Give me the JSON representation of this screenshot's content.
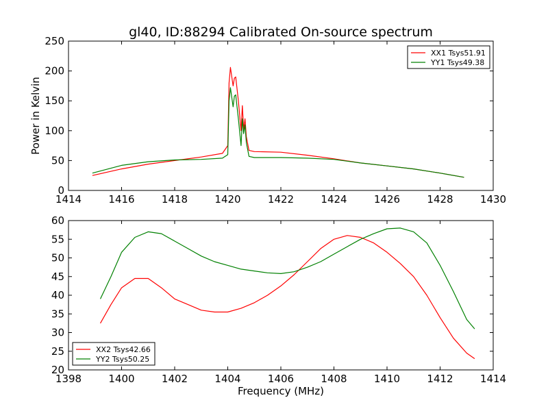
{
  "chart_data": [
    {
      "type": "line",
      "title": "gl40, ID:88294 Calibrated On-source spectrum",
      "xlabel": "",
      "ylabel": "Power in Kelvin",
      "xlim": [
        1414,
        1430
      ],
      "ylim": [
        0,
        250
      ],
      "xticks": [
        "1414",
        "1416",
        "1418",
        "1420",
        "1422",
        "1424",
        "1426",
        "1428",
        "1430"
      ],
      "yticks": [
        "0",
        "50",
        "100",
        "150",
        "200",
        "250"
      ],
      "legend_position": "top-right",
      "grid": false,
      "series": [
        {
          "name": "XX1 Tsys51.91",
          "color": "#ff0000",
          "x": [
            1414.9,
            1416.0,
            1417.0,
            1418.0,
            1419.0,
            1419.8,
            1420.0,
            1420.05,
            1420.1,
            1420.2,
            1420.25,
            1420.3,
            1420.4,
            1420.5,
            1420.55,
            1420.6,
            1420.65,
            1420.7,
            1420.8,
            1421.0,
            1422.0,
            1423.0,
            1424.0,
            1425.0,
            1426.0,
            1427.0,
            1428.0,
            1428.9
          ],
          "y": [
            25,
            36,
            44,
            50,
            56,
            62,
            75,
            180,
            206,
            175,
            188,
            190,
            150,
            100,
            142,
            102,
            120,
            90,
            67,
            65,
            64,
            59,
            53,
            46,
            41,
            36,
            29,
            22
          ]
        },
        {
          "name": "YY1 Tsys49.38",
          "color": "#008000",
          "x": [
            1414.9,
            1416.0,
            1417.0,
            1418.0,
            1419.0,
            1419.8,
            1420.0,
            1420.05,
            1420.1,
            1420.2,
            1420.25,
            1420.3,
            1420.4,
            1420.5,
            1420.55,
            1420.6,
            1420.65,
            1420.7,
            1420.8,
            1421.0,
            1422.0,
            1423.0,
            1424.0,
            1425.0,
            1426.0,
            1427.0,
            1428.0,
            1428.9
          ],
          "y": [
            29,
            42,
            48,
            51,
            52,
            54,
            60,
            150,
            172,
            140,
            158,
            160,
            120,
            75,
            120,
            95,
            110,
            80,
            57,
            55,
            55,
            54,
            52,
            46,
            41,
            36,
            29,
            22
          ]
        }
      ]
    },
    {
      "type": "line",
      "title": "",
      "xlabel": "Frequency (MHz)",
      "ylabel": "",
      "xlim": [
        1398,
        1414
      ],
      "ylim": [
        20,
        60
      ],
      "xticks": [
        "1398",
        "1400",
        "1402",
        "1404",
        "1406",
        "1408",
        "1410",
        "1412",
        "1414"
      ],
      "yticks": [
        "20",
        "25",
        "30",
        "35",
        "40",
        "45",
        "50",
        "55",
        "60"
      ],
      "legend_position": "bottom-left",
      "grid": false,
      "series": [
        {
          "name": "XX2 Tsys42.66",
          "color": "#ff0000",
          "x": [
            1399.2,
            1399.6,
            1400.0,
            1400.5,
            1401.0,
            1401.5,
            1402.0,
            1402.5,
            1403.0,
            1403.5,
            1404.0,
            1404.5,
            1405.0,
            1405.5,
            1406.0,
            1406.5,
            1407.0,
            1407.5,
            1408.0,
            1408.5,
            1409.0,
            1409.5,
            1410.0,
            1410.5,
            1411.0,
            1411.5,
            1412.0,
            1412.5,
            1413.0,
            1413.3
          ],
          "y": [
            32.5,
            37.5,
            42.0,
            44.5,
            44.5,
            42.0,
            39.0,
            37.5,
            36.0,
            35.5,
            35.5,
            36.5,
            38.0,
            40.0,
            42.5,
            45.5,
            49.0,
            52.5,
            55.0,
            56.0,
            55.5,
            54.0,
            51.5,
            48.5,
            45.0,
            40.0,
            34.0,
            28.5,
            24.5,
            23.0
          ]
        },
        {
          "name": "YY2 Tsys50.25",
          "color": "#008000",
          "x": [
            1399.2,
            1399.6,
            1400.0,
            1400.5,
            1401.0,
            1401.5,
            1402.0,
            1402.5,
            1403.0,
            1403.5,
            1404.0,
            1404.5,
            1405.0,
            1405.5,
            1406.0,
            1406.5,
            1407.0,
            1407.5,
            1408.0,
            1408.5,
            1409.0,
            1409.5,
            1410.0,
            1410.5,
            1411.0,
            1411.5,
            1412.0,
            1412.5,
            1413.0,
            1413.3
          ],
          "y": [
            39.0,
            45.0,
            51.5,
            55.5,
            57.0,
            56.5,
            54.5,
            52.5,
            50.5,
            49.0,
            48.0,
            47.0,
            46.5,
            46.0,
            45.8,
            46.3,
            47.5,
            49.0,
            51.0,
            53.0,
            55.0,
            56.5,
            57.8,
            58.0,
            57.0,
            54.0,
            48.0,
            41.0,
            33.5,
            31.0
          ]
        }
      ]
    }
  ]
}
